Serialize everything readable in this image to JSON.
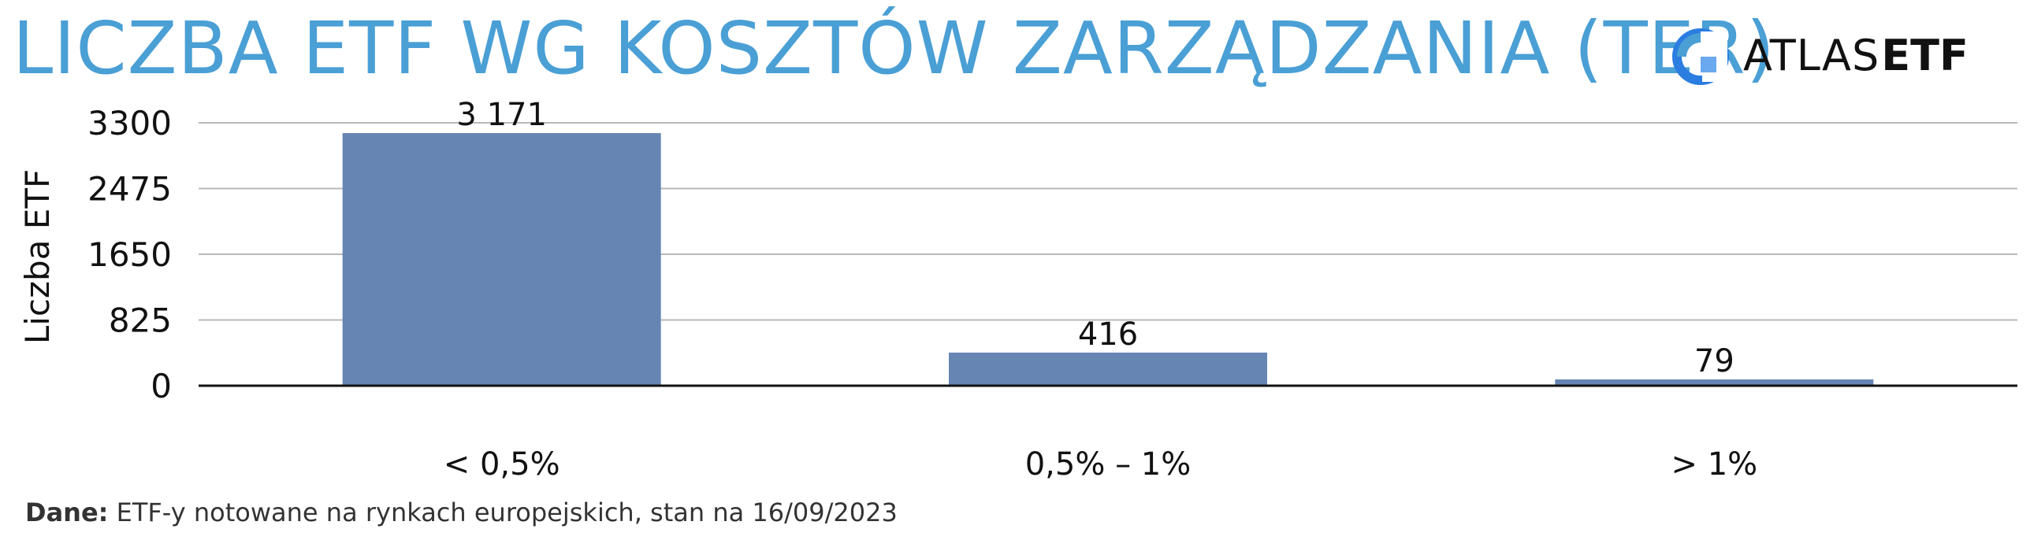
{
  "chart_data": {
    "type": "bar",
    "title": "LICZBA ETF WG KOSZTÓW ZARZĄDZANIA (TER)",
    "ylabel": "Liczba ETF",
    "xlabel": "",
    "categories": [
      "< 0,5%",
      "0,5% – 1%",
      "> 1%"
    ],
    "values": [
      3171,
      416,
      79
    ],
    "data_labels": [
      "3 171",
      "416",
      "79"
    ],
    "yticks": [
      0,
      825,
      1650,
      2475,
      3300
    ],
    "ylim": [
      0,
      3300
    ],
    "grid": true,
    "legend": "none",
    "bar_color": "#6685b3"
  },
  "logo": {
    "text_light": "ATLAS",
    "text_bold": "ETF",
    "color": "#4a9fd5"
  },
  "source": {
    "label": "Dane:",
    "text": "ETF-y notowane na rynkach europejskich, stan na 16/09/2023"
  },
  "colors": {
    "title": "#4a9fd5",
    "grid": "#b8b8b8",
    "axis": "#111111"
  }
}
